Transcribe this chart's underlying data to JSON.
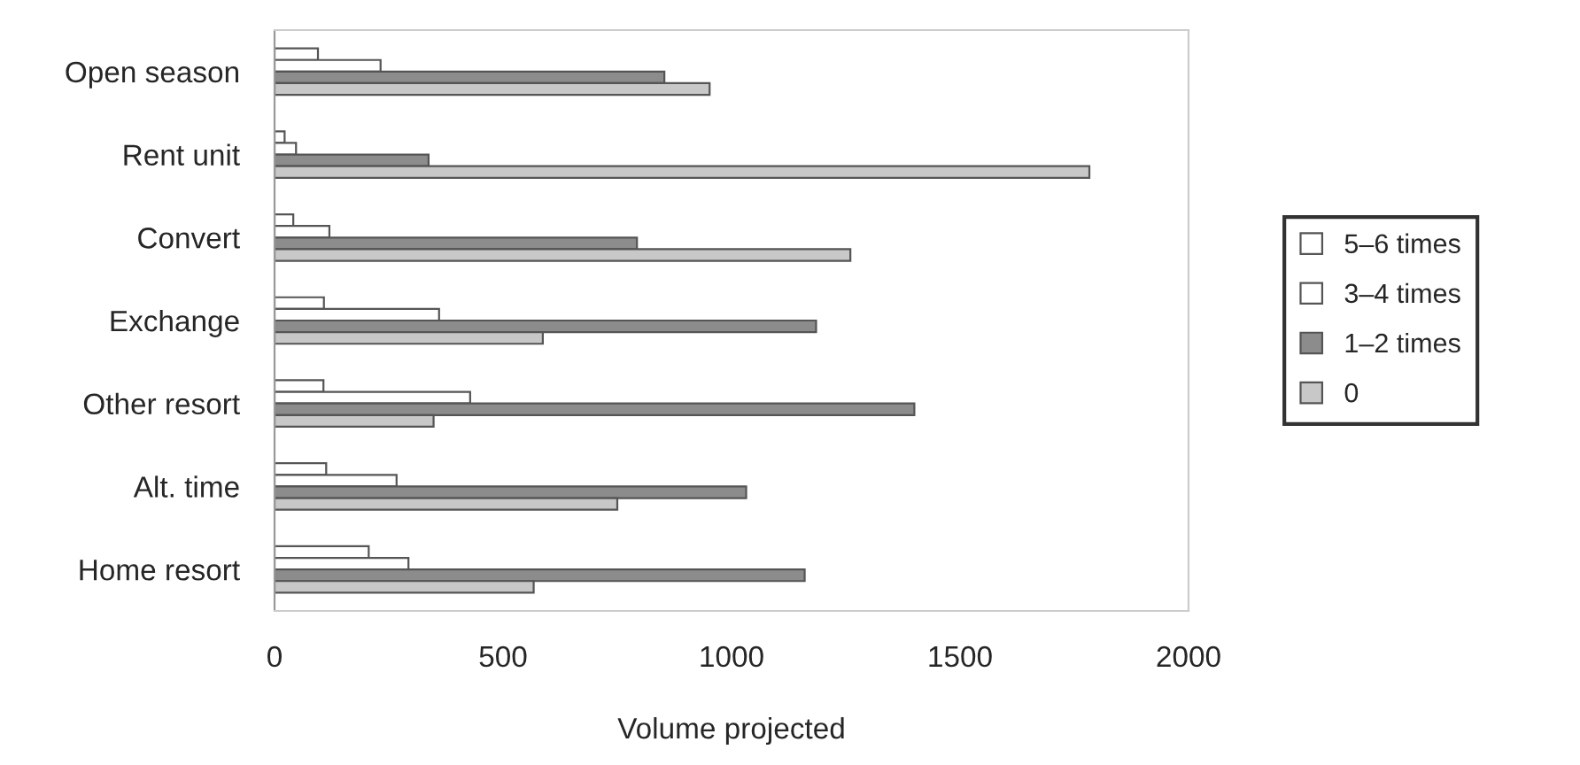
{
  "chart_data": {
    "type": "bar",
    "orientation": "horizontal",
    "xlabel": "Volume projected",
    "categories": [
      "Open season",
      "Rent unit",
      "Convert",
      "Exchange",
      "Other resort",
      "Alt. time",
      "Home resort"
    ],
    "series": [
      {
        "name": "5–6 times",
        "color": "#ffffff",
        "values": [
          95,
          22,
          41,
          108,
          107,
          113,
          206
        ]
      },
      {
        "name": "3–4 times",
        "color": "#ffffff",
        "values": [
          232,
          47,
          120,
          360,
          428,
          267,
          293
        ]
      },
      {
        "name": "1–2 times",
        "color": "#8c8c8c",
        "values": [
          853,
          337,
          793,
          1185,
          1400,
          1032,
          1160
        ]
      },
      {
        "name": "0",
        "color": "#c8c8c8",
        "values": [
          952,
          1783,
          1260,
          587,
          348,
          750,
          567
        ]
      }
    ],
    "xlim": [
      0,
      2000
    ],
    "xticks": [
      0,
      500,
      1000,
      1500,
      2000
    ],
    "grid": false,
    "legend": "right"
  }
}
